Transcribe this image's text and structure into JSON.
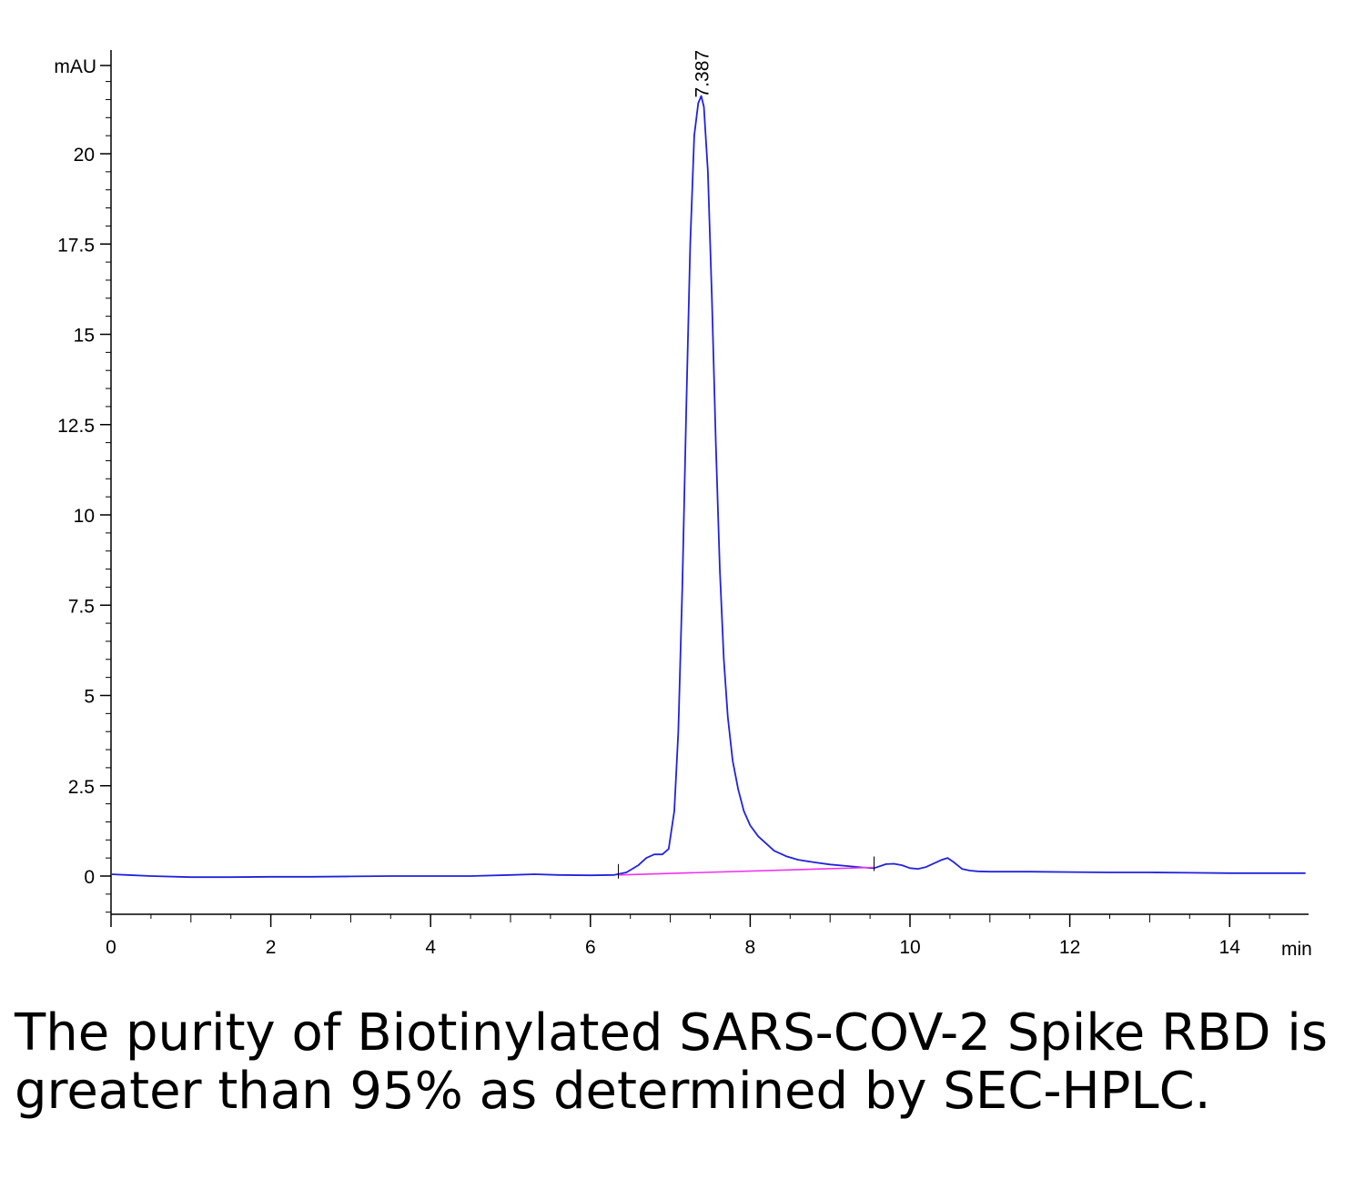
{
  "chart_data": {
    "type": "line",
    "title": "",
    "xlabel": "",
    "ylabel": "",
    "x_unit": "min",
    "y_unit": "mAU",
    "xlim": [
      0,
      15
    ],
    "ylim": [
      -1.1,
      23.5
    ],
    "x_ticks": [
      0,
      2,
      4,
      6,
      8,
      10,
      12,
      14
    ],
    "y_ticks": [
      0,
      2.5,
      5,
      7.5,
      10,
      12.5,
      15,
      17.5,
      20
    ],
    "y_tick_labels": [
      "0",
      "2.5",
      "5",
      "7.5",
      "10",
      "12.5",
      "15",
      "17.5",
      "20"
    ],
    "grid": false,
    "series": [
      {
        "name": "",
        "color": "#2222dd",
        "x": [
          0,
          0.2,
          0.5,
          1.0,
          1.5,
          2.0,
          2.5,
          3.0,
          3.5,
          4.0,
          4.5,
          5.0,
          5.3,
          5.6,
          6.0,
          6.3,
          6.45,
          6.6,
          6.7,
          6.8,
          6.9,
          6.98,
          7.05,
          7.1,
          7.15,
          7.2,
          7.25,
          7.3,
          7.35,
          7.387,
          7.42,
          7.47,
          7.52,
          7.57,
          7.62,
          7.67,
          7.72,
          7.78,
          7.85,
          7.92,
          8.0,
          8.1,
          8.2,
          8.3,
          8.45,
          8.6,
          8.8,
          9.0,
          9.2,
          9.4,
          9.55,
          9.7,
          9.8,
          9.9,
          10.0,
          10.1,
          10.2,
          10.3,
          10.4,
          10.47,
          10.55,
          10.65,
          10.75,
          10.85,
          11.0,
          11.5,
          12.0,
          12.5,
          13.0,
          13.5,
          14.0,
          14.5,
          14.95
        ],
        "y": [
          0.05,
          0.03,
          0.0,
          -0.03,
          -0.03,
          -0.02,
          -0.02,
          -0.01,
          0.0,
          0.0,
          0.0,
          0.03,
          0.05,
          0.03,
          0.02,
          0.03,
          0.1,
          0.3,
          0.5,
          0.6,
          0.6,
          0.75,
          1.8,
          4.0,
          8.0,
          13.0,
          17.5,
          20.5,
          21.4,
          21.6,
          21.3,
          19.5,
          16.0,
          12.0,
          8.5,
          6.0,
          4.4,
          3.2,
          2.4,
          1.8,
          1.4,
          1.1,
          0.9,
          0.7,
          0.55,
          0.45,
          0.38,
          0.32,
          0.28,
          0.24,
          0.22,
          0.33,
          0.34,
          0.3,
          0.22,
          0.2,
          0.25,
          0.35,
          0.45,
          0.5,
          0.38,
          0.2,
          0.15,
          0.13,
          0.12,
          0.12,
          0.11,
          0.1,
          0.1,
          0.09,
          0.08,
          0.08,
          0.08
        ]
      },
      {
        "name": "",
        "color": "#ee33ee",
        "x": [
          6.35,
          9.55
        ],
        "y": [
          0.03,
          0.24
        ]
      }
    ],
    "annotations": [
      {
        "text": "7.387",
        "x": 7.387,
        "y": 21.6
      }
    ]
  },
  "caption": "The purity of Biotinylated SARS-COV-2 Spike RBD is greater than 95% as determined by SEC-HPLC."
}
